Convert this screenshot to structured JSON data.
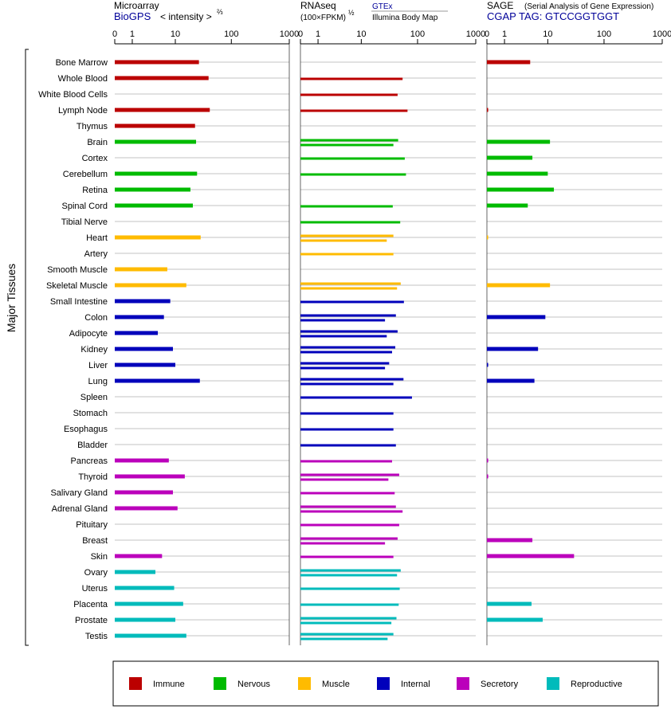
{
  "header": {
    "microarray_title": "Microarray",
    "microarray_source": "BioGPS",
    "microarray_scale": "< intensity >",
    "microarray_scale_exp": "⅔",
    "rnaseq_title": "RNAseq",
    "rnaseq_source_gtex": "GTEx",
    "rnaseq_source_ibm": "Illumina Body Map",
    "rnaseq_scale": "(100×FPKM)",
    "rnaseq_scale_exp": "½",
    "sage_title": "SAGE",
    "sage_subtitle": "(Serial Analysis of Gene Expression)",
    "sage_tag": "CGAP TAG: GTCCGGTGGT"
  },
  "y_axis_label": "Major Tissues",
  "colors": {
    "Immune": "#bb0000",
    "Nervous": "#00bb00",
    "Muscle": "#ffbb00",
    "Internal": "#0000bb",
    "Secretory": "#bb00bb",
    "Reproductive": "#00bbbb"
  },
  "legend": [
    {
      "label": "Immune",
      "color": "#bb0000"
    },
    {
      "label": "Nervous",
      "color": "#00bb00"
    },
    {
      "label": "Muscle",
      "color": "#ffbb00"
    },
    {
      "label": "Internal",
      "color": "#0000bb"
    },
    {
      "label": "Secretory",
      "color": "#bb00bb"
    },
    {
      "label": "Reproductive",
      "color": "#00bbbb"
    }
  ],
  "chart_data": [
    {
      "type": "bar",
      "name": "Microarray",
      "x_scale": "transformed intensity^(2/3)",
      "ticks": [
        0,
        1,
        10,
        100,
        1000
      ],
      "xlim": [
        0,
        1000
      ],
      "categories": [
        "Bone Marrow",
        "Whole Blood",
        "White Blood Cells",
        "Lymph Node",
        "Thymus",
        "Brain",
        "Cortex",
        "Cerebellum",
        "Retina",
        "Spinal Cord",
        "Tibial Nerve",
        "Heart",
        "Artery",
        "Smooth Muscle",
        "Skeletal Muscle",
        "Small Intestine",
        "Colon",
        "Adipocyte",
        "Kidney",
        "Liver",
        "Lung",
        "Spleen",
        "Stomach",
        "Esophagus",
        "Bladder",
        "Pancreas",
        "Thyroid",
        "Salivary Gland",
        "Adrenal Gland",
        "Pituitary",
        "Breast",
        "Skin",
        "Ovary",
        "Uterus",
        "Placenta",
        "Prostate",
        "Testis"
      ],
      "groups": [
        "Immune",
        "Immune",
        "Immune",
        "Immune",
        "Immune",
        "Nervous",
        "Nervous",
        "Nervous",
        "Nervous",
        "Nervous",
        "Nervous",
        "Muscle",
        "Muscle",
        "Muscle",
        "Muscle",
        "Internal",
        "Internal",
        "Internal",
        "Internal",
        "Internal",
        "Internal",
        "Internal",
        "Internal",
        "Internal",
        "Internal",
        "Secretory",
        "Secretory",
        "Secretory",
        "Secretory",
        "Secretory",
        "Secretory",
        "Secretory",
        "Reproductive",
        "Reproductive",
        "Reproductive",
        "Reproductive",
        "Reproductive"
      ],
      "values": [
        27,
        40,
        null,
        42,
        23,
        24,
        null,
        25,
        19,
        21,
        null,
        29,
        null,
        7,
        16,
        8,
        6,
        4.5,
        9,
        10,
        28,
        null,
        null,
        null,
        null,
        7.5,
        15,
        9,
        11,
        null,
        null,
        5.5,
        4,
        9.5,
        14,
        10,
        16
      ]
    },
    {
      "type": "bar",
      "name": "RNAseq",
      "x_scale": "(100×FPKM)^(1/2)",
      "ticks": [
        0,
        1,
        10,
        100,
        1000
      ],
      "xlim": [
        0,
        1000
      ],
      "series_sources": [
        "GTEx",
        "Illumina Body Map"
      ],
      "categories": [
        "Bone Marrow",
        "Whole Blood",
        "White Blood Cells",
        "Lymph Node",
        "Thymus",
        "Brain",
        "Cortex",
        "Cerebellum",
        "Retina",
        "Spinal Cord",
        "Tibial Nerve",
        "Heart",
        "Artery",
        "Smooth Muscle",
        "Skeletal Muscle",
        "Small Intestine",
        "Colon",
        "Adipocyte",
        "Kidney",
        "Liver",
        "Lung",
        "Spleen",
        "Stomach",
        "Esophagus",
        "Bladder",
        "Pancreas",
        "Thyroid",
        "Salivary Gland",
        "Adrenal Gland",
        "Pituitary",
        "Breast",
        "Skin",
        "Ovary",
        "Uterus",
        "Placenta",
        "Prostate",
        "Testis"
      ],
      "groups": [
        "Immune",
        "Immune",
        "Immune",
        "Immune",
        "Immune",
        "Nervous",
        "Nervous",
        "Nervous",
        "Nervous",
        "Nervous",
        "Nervous",
        "Muscle",
        "Muscle",
        "Muscle",
        "Muscle",
        "Internal",
        "Internal",
        "Internal",
        "Internal",
        "Internal",
        "Internal",
        "Internal",
        "Internal",
        "Internal",
        "Internal",
        "Secretory",
        "Secretory",
        "Secretory",
        "Secretory",
        "Secretory",
        "Secretory",
        "Secretory",
        "Reproductive",
        "Reproductive",
        "Reproductive",
        "Reproductive",
        "Reproductive"
      ],
      "gtex": [
        null,
        55,
        45,
        67,
        null,
        46,
        60,
        63,
        null,
        37,
        50,
        38,
        38,
        null,
        51,
        58,
        42,
        45,
        41,
        32,
        57,
        80,
        38,
        38,
        42,
        36,
        48,
        40,
        42,
        48,
        45,
        38,
        51,
        49,
        47,
        43,
        38
      ],
      "ibm": [
        null,
        null,
        null,
        null,
        null,
        38,
        null,
        null,
        null,
        null,
        null,
        29,
        null,
        null,
        44,
        null,
        27,
        29,
        36,
        27,
        38,
        null,
        null,
        null,
        null,
        null,
        31,
        null,
        55,
        null,
        27,
        null,
        44,
        null,
        null,
        35,
        30
      ]
    },
    {
      "type": "bar",
      "name": "SAGE",
      "ticks": [
        0,
        1,
        10,
        100,
        1000
      ],
      "xlim": [
        0,
        1000
      ],
      "categories": [
        "Bone Marrow",
        "Whole Blood",
        "White Blood Cells",
        "Lymph Node",
        "Thymus",
        "Brain",
        "Cortex",
        "Cerebellum",
        "Retina",
        "Spinal Cord",
        "Tibial Nerve",
        "Heart",
        "Artery",
        "Smooth Muscle",
        "Skeletal Muscle",
        "Small Intestine",
        "Colon",
        "Adipocyte",
        "Kidney",
        "Liver",
        "Lung",
        "Spleen",
        "Stomach",
        "Esophagus",
        "Bladder",
        "Pancreas",
        "Thyroid",
        "Salivary Gland",
        "Adrenal Gland",
        "Pituitary",
        "Breast",
        "Skin",
        "Ovary",
        "Uterus",
        "Placenta",
        "Prostate",
        "Testis"
      ],
      "groups": [
        "Immune",
        "Immune",
        "Immune",
        "Immune",
        "Immune",
        "Nervous",
        "Nervous",
        "Nervous",
        "Nervous",
        "Nervous",
        "Nervous",
        "Muscle",
        "Muscle",
        "Muscle",
        "Muscle",
        "Internal",
        "Internal",
        "Internal",
        "Internal",
        "Internal",
        "Internal",
        "Internal",
        "Internal",
        "Internal",
        "Internal",
        "Secretory",
        "Secretory",
        "Secretory",
        "Secretory",
        "Secretory",
        "Secretory",
        "Secretory",
        "Reproductive",
        "Reproductive",
        "Reproductive",
        "Reproductive",
        "Reproductive"
      ],
      "values": [
        4.5,
        null,
        null,
        0.05,
        null,
        11,
        5,
        10,
        13,
        4,
        null,
        0.05,
        null,
        null,
        11,
        null,
        9,
        null,
        6.5,
        0.05,
        5.5,
        null,
        null,
        null,
        null,
        0.05,
        0.05,
        null,
        null,
        null,
        5,
        30,
        null,
        null,
        4.8,
        8,
        null
      ]
    }
  ]
}
